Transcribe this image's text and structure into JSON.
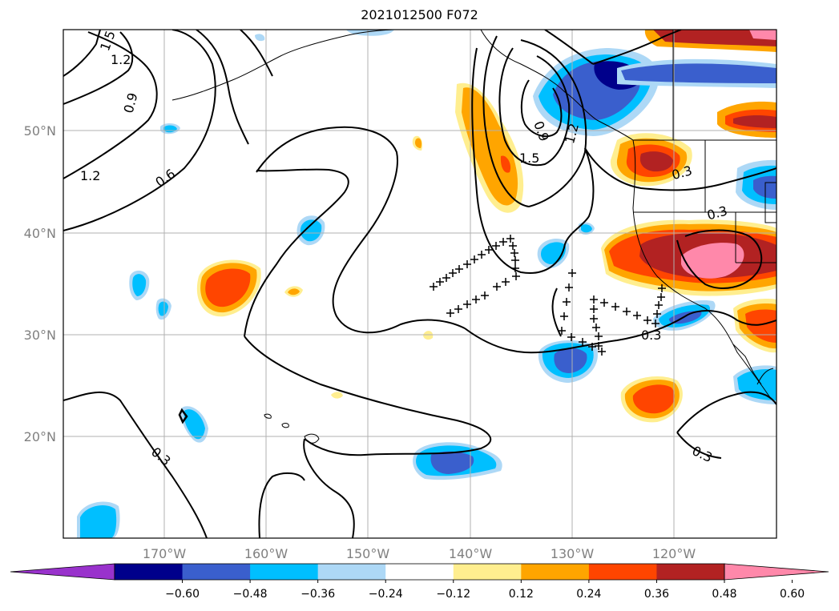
{
  "title": "2021012500 F072",
  "lat_labels": [
    "20°N",
    "30°N",
    "40°N",
    "50°N"
  ],
  "lon_labels": [
    "170°W",
    "160°W",
    "150°W",
    "140°W",
    "130°W",
    "120°W"
  ],
  "colorbar": {
    "tick_labels": [
      "−0.60",
      "−0.48",
      "−0.36",
      "−0.24",
      "−0.12",
      "0.12",
      "0.24",
      "0.36",
      "0.48",
      "0.60"
    ],
    "colors": [
      "#9932CC",
      "#00008B",
      "#3A5FCD",
      "#00BFFF",
      "#ADD8F6",
      "#FFFFFF",
      "#FFEE8F",
      "#FFA500",
      "#FF4500",
      "#B22222",
      "#FF88AA"
    ]
  },
  "contour_labels": [
    "1.5",
    "1.2",
    "0.9",
    "1.2",
    "0.6",
    "1.5",
    "1.2",
    "0.9",
    "0.3",
    "0.3",
    "0.3",
    "0.3",
    "0.3"
  ]
}
